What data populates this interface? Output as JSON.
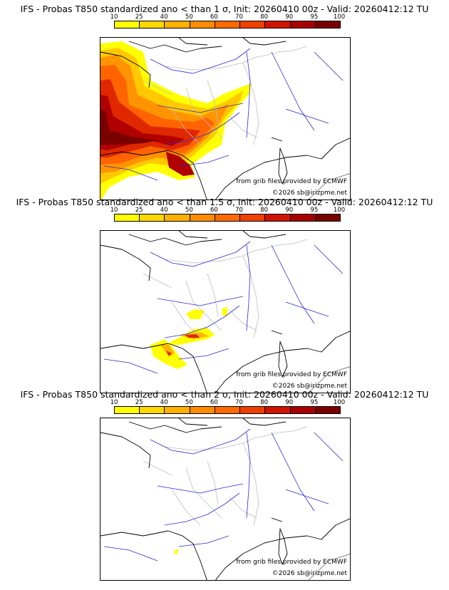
{
  "colorbar": {
    "ticks": [
      "10",
      "25",
      "40",
      "50",
      "60",
      "70",
      "80",
      "90",
      "95",
      "100"
    ],
    "colors": [
      "#ffff00",
      "#ffd800",
      "#ffb000",
      "#ff8c00",
      "#ff6a00",
      "#f04000",
      "#d01400",
      "#a80000",
      "#780000"
    ]
  },
  "panels": [
    {
      "title": "IFS - Probas T850  standardized ano < than 1 σ, Init: 20260410 00z - Valid: 20260412:12 TU",
      "credit_source": "from grib files provided by ECMWF",
      "credit_copyright": "©2026 sb@irizpme.net",
      "threshold_sigma": "1"
    },
    {
      "title": "IFS - Probas T850  standardized ano < than 1.5 σ, Init: 20260410 00z - Valid: 20260412:12 TU",
      "credit_source": "from grib files provided by ECMWF",
      "credit_copyright": "©2026 sb@irizpme.net",
      "threshold_sigma": "1.5"
    },
    {
      "title": "IFS - Probas T850  standardized ano < than 2 σ, Init: 20260410 00z - Valid: 20260412:12 TU",
      "credit_source": "from grib files provided by ECMWF",
      "credit_copyright": "©2026 sb@irizpme.net",
      "threshold_sigma": "2"
    }
  ]
}
